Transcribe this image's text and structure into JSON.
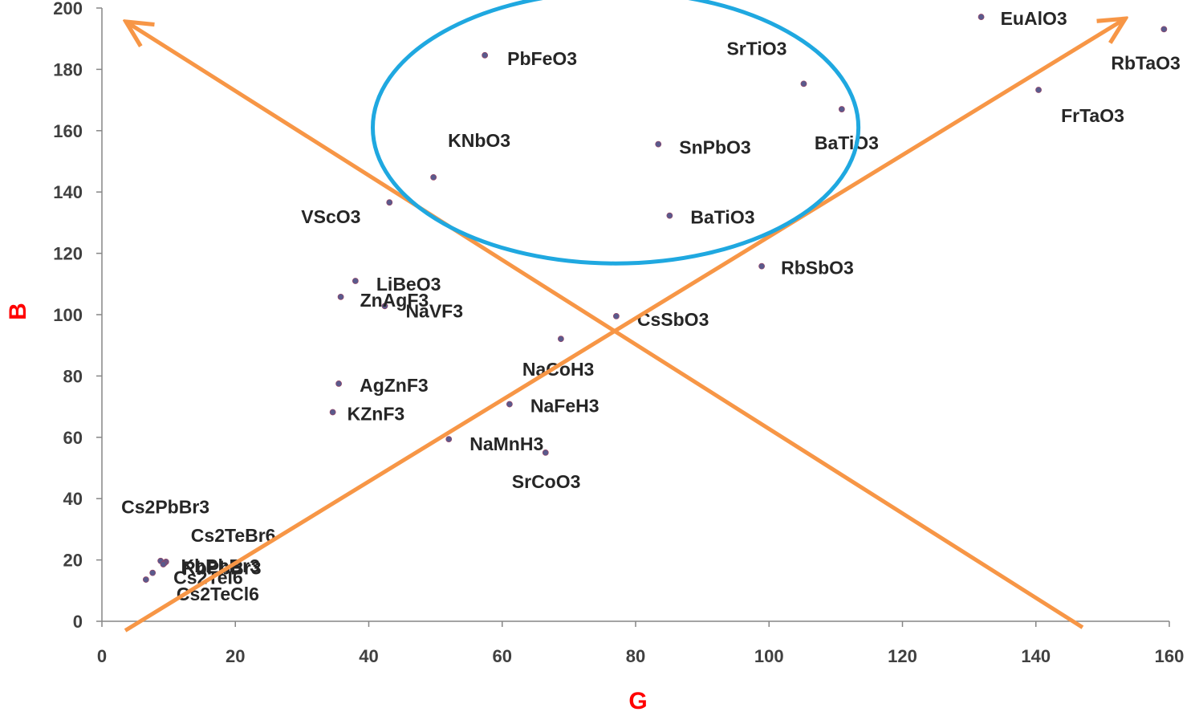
{
  "chart_data": {
    "type": "scatter",
    "title": "",
    "xlabel": "G",
    "ylabel": "B",
    "xlim": [
      0,
      160
    ],
    "ylim": [
      0,
      200
    ],
    "x_ticks": [
      0,
      20,
      40,
      60,
      80,
      100,
      120,
      140,
      160
    ],
    "y_ticks": [
      0,
      20,
      40,
      60,
      80,
      100,
      120,
      140,
      160,
      180,
      200
    ],
    "grid": false,
    "legend": "none",
    "marker_color": "#5a5a8c",
    "arrow_color": "#f79646",
    "ellipse_color": "#1fa8e0",
    "axis_title_color": "#ff0000",
    "points": [
      {
        "label": "EuAlO3",
        "x": 131.8,
        "y": 197.1
      },
      {
        "label": "RbTaO3",
        "x": 159.2,
        "y": 193.1
      },
      {
        "label": "FrTaO3",
        "x": 140.4,
        "y": 173.3
      },
      {
        "label": "PbFeO3",
        "x": 57.4,
        "y": 184.6
      },
      {
        "label": "SrTiO3",
        "x": 105.2,
        "y": 175.3
      },
      {
        "label": "BaTiO3",
        "x": 110.9,
        "y": 167.0
      },
      {
        "label": "KNbO3",
        "x": 49.7,
        "y": 144.8
      },
      {
        "label": "SnPbO3",
        "x": 83.4,
        "y": 155.6
      },
      {
        "label": "VScO3",
        "x": 43.1,
        "y": 136.6
      },
      {
        "label": "BaTiO3",
        "x": 85.1,
        "y": 132.3
      },
      {
        "label": "RbSbO3",
        "x": 98.9,
        "y": 115.8
      },
      {
        "label": "LiBeO3",
        "x": 38.0,
        "y": 111.0
      },
      {
        "label": "ZnAgF3",
        "x": 35.8,
        "y": 105.8
      },
      {
        "label": "NaVF3",
        "x": 42.4,
        "y": 102.8
      },
      {
        "label": "CsSbO3",
        "x": 77.1,
        "y": 99.5
      },
      {
        "label": "NaCoH3",
        "x": 68.8,
        "y": 92.1
      },
      {
        "label": "AgZnF3",
        "x": 35.5,
        "y": 77.5
      },
      {
        "label": "NaFeH3",
        "x": 61.1,
        "y": 70.8
      },
      {
        "label": "KZnF3",
        "x": 34.6,
        "y": 68.2
      },
      {
        "label": "NaMnH3",
        "x": 52.0,
        "y": 59.4
      },
      {
        "label": "SrCoO3",
        "x": 66.5,
        "y": 55.0
      },
      {
        "label": "Cs2PbBr3",
        "x": 8.8,
        "y": 19.7
      },
      {
        "label": "Cs2TeBr6",
        "x": 9.6,
        "y": 19.4
      },
      {
        "label": "RbPbBr3",
        "x": 9.4,
        "y": 19.0
      },
      {
        "label": "KbPbBr3",
        "x": 9.2,
        "y": 18.6
      },
      {
        "label": "Cs2TeI6",
        "x": 7.6,
        "y": 15.8
      },
      {
        "label": "Cs2TeCl6",
        "x": 6.6,
        "y": 13.6
      }
    ],
    "annotations": [
      {
        "type": "arrow",
        "from": [
          3.5,
          -3
        ],
        "to": [
          153,
          196
        ]
      },
      {
        "type": "arrow",
        "from": [
          147,
          -2
        ],
        "to": [
          4,
          195
        ]
      },
      {
        "type": "ellipse",
        "center": [
          77,
          161
        ],
        "radius": [
          36.4,
          44.3
        ]
      }
    ]
  }
}
